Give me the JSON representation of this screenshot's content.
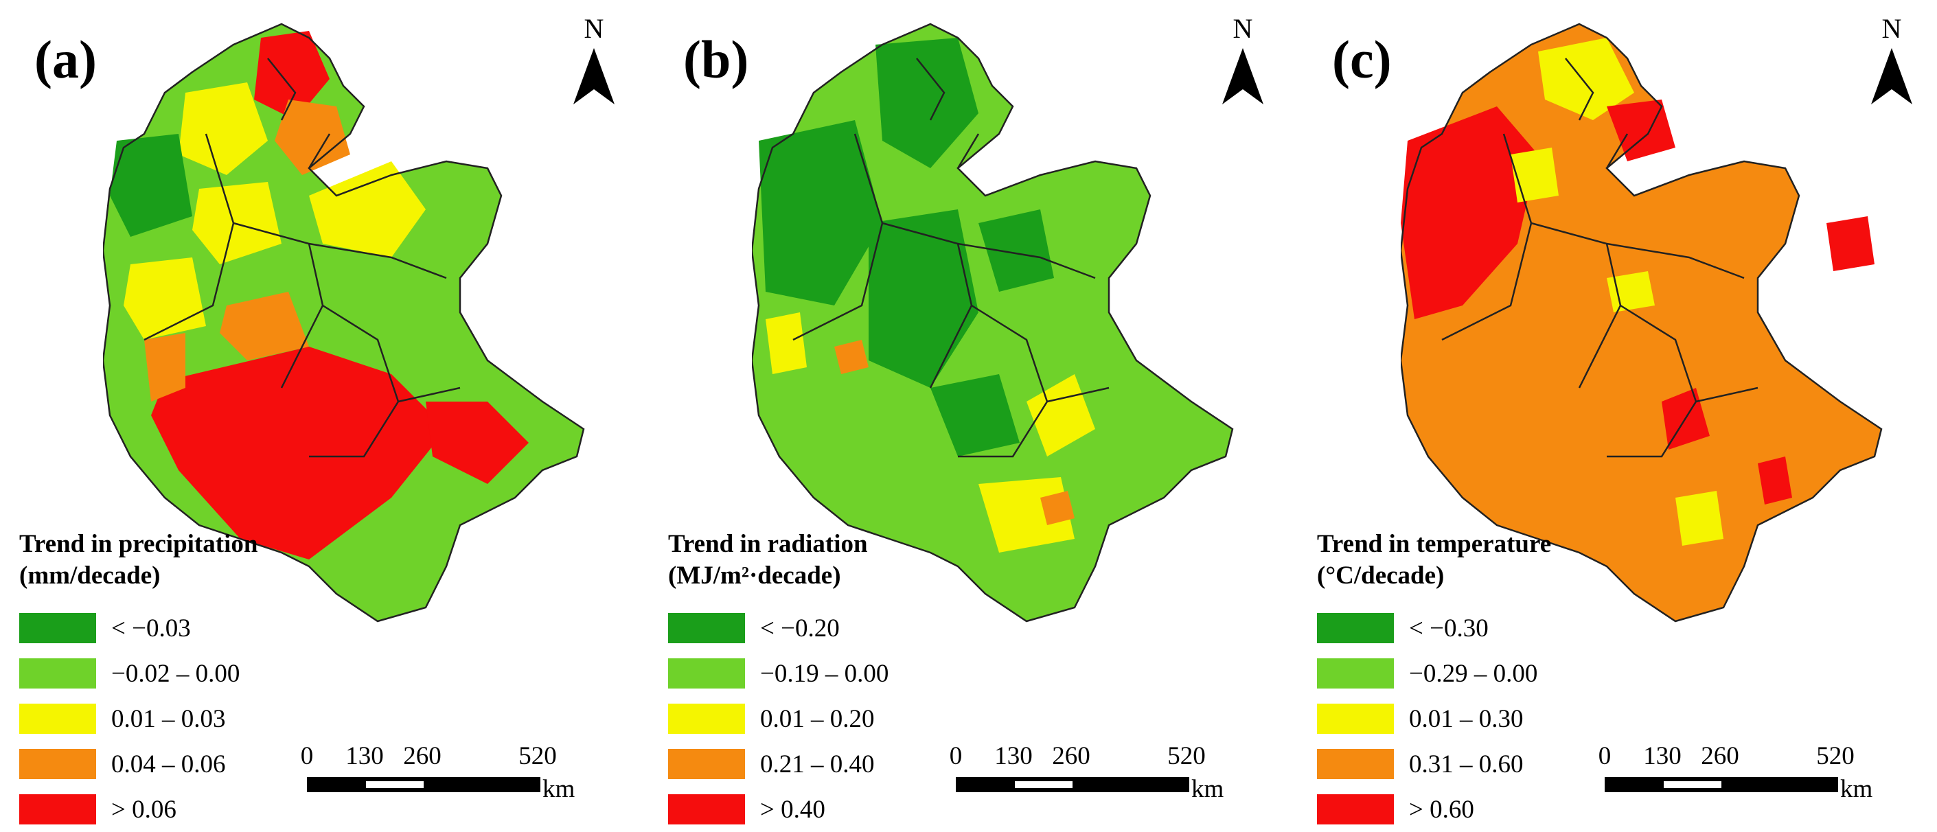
{
  "panels": [
    {
      "label": "(a)",
      "north": "N",
      "legend": {
        "title_line1": "Trend in precipitation",
        "title_line2": "(mm/decade)",
        "items": [
          {
            "label": "< −0.03",
            "color": "#1a9e1a"
          },
          {
            "label": "−0.02 – 0.00",
            "color": "#6fd22a"
          },
          {
            "label": "0.01 – 0.03",
            "color": "#f5f500"
          },
          {
            "label": "0.04 – 0.06",
            "color": "#f58a10"
          },
          {
            "label": "> 0.06",
            "color": "#f50d0d"
          }
        ]
      },
      "scale": {
        "ticks": [
          "0",
          "130",
          "260",
          "520"
        ],
        "unit": "km"
      }
    },
    {
      "label": "(b)",
      "north": "N",
      "legend": {
        "title_line1": "Trend in radiation",
        "title_line2": "(MJ/m²·decade)",
        "items": [
          {
            "label": "< −0.20",
            "color": "#1a9e1a"
          },
          {
            "label": "−0.19 – 0.00",
            "color": "#6fd22a"
          },
          {
            "label": "0.01 – 0.20",
            "color": "#f5f500"
          },
          {
            "label": "0.21 – 0.40",
            "color": "#f58a10"
          },
          {
            "label": "> 0.40",
            "color": "#f50d0d"
          }
        ]
      },
      "scale": {
        "ticks": [
          "0",
          "130",
          "260",
          "520"
        ],
        "unit": "km"
      }
    },
    {
      "label": "(c)",
      "north": "N",
      "legend": {
        "title_line1": "Trend in temperature",
        "title_line2": "(°C/decade)",
        "items": [
          {
            "label": "< −0.30",
            "color": "#1a9e1a"
          },
          {
            "label": "−0.29 – 0.00",
            "color": "#6fd22a"
          },
          {
            "label": "0.01 – 0.30",
            "color": "#f5f500"
          },
          {
            "label": "0.31 – 0.60",
            "color": "#f58a10"
          },
          {
            "label": "> 0.60",
            "color": "#f50d0d"
          }
        ]
      },
      "scale": {
        "ticks": [
          "0",
          "130",
          "260",
          "520"
        ],
        "unit": "km"
      }
    }
  ]
}
